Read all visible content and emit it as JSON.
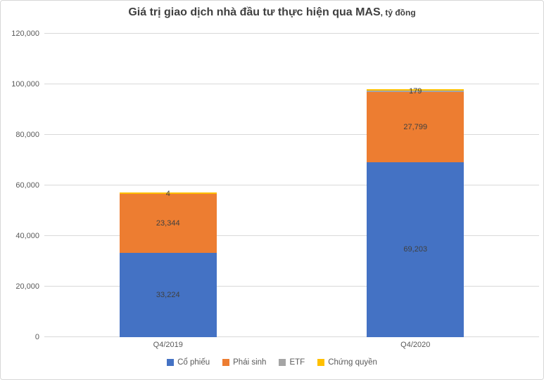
{
  "title": {
    "main": "Giá trị giao dịch nhà đầu tư thực hiện qua MAS",
    "suffix": ", tỷ đồng"
  },
  "chart_data": {
    "type": "bar",
    "stacked": true,
    "title": "Giá trị giao dịch nhà đầu tư thực hiện qua MAS, tỷ đồng",
    "categories": [
      "Q4/2019",
      "Q4/2020"
    ],
    "series": [
      {
        "name": "Cổ phiếu",
        "color": "#4472C4",
        "values": [
          33224,
          69203
        ],
        "labels": [
          "33,224",
          "69,203"
        ]
      },
      {
        "name": "Phái sinh",
        "color": "#ED7D31",
        "values": [
          23344,
          27799
        ],
        "labels": [
          "23,344",
          "27,799"
        ]
      },
      {
        "name": "ETF",
        "color": "#A5A5A5",
        "values": [
          4,
          179
        ],
        "labels": [
          "4",
          "179"
        ]
      },
      {
        "name": "Chứng quyền",
        "color": "#FFC000",
        "values": [
          null,
          null
        ],
        "labels": [
          "",
          ""
        ]
      }
    ],
    "ylim": [
      0,
      120000
    ],
    "ytick_step": 20000,
    "ytick_labels": [
      "0",
      "20,000",
      "40,000",
      "60,000",
      "80,000",
      "100,000",
      "120,000"
    ],
    "grid": true,
    "legend_position": "bottom"
  },
  "colors": {
    "title_text": "#404040",
    "axis_text": "#595959",
    "data_label_text": "#404040",
    "gridline": "#d9d9d9",
    "chart_border": "#d7d7d7",
    "background": "#ffffff"
  }
}
